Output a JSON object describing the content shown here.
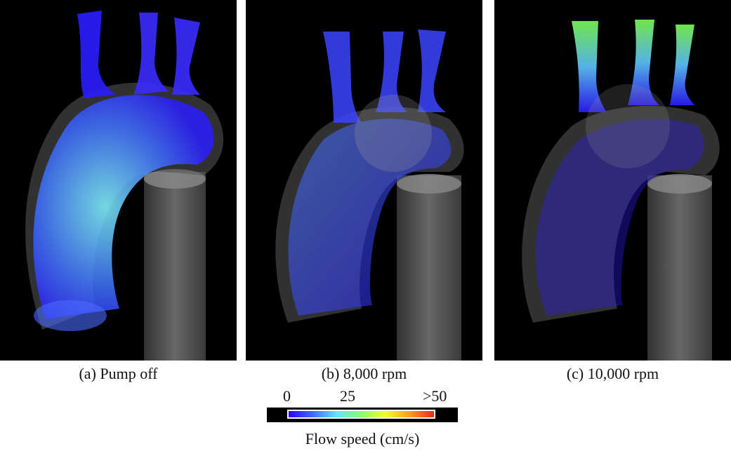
{
  "panels": [
    {
      "id": "a",
      "caption": "(a) Pump off"
    },
    {
      "id": "b",
      "caption": "(b) 8,000 rpm"
    },
    {
      "id": "c",
      "caption": "(c) 10,000 rpm"
    }
  ],
  "legend": {
    "title": "Flow speed (cm/s)",
    "tick_min": "0",
    "tick_mid": "25",
    "tick_max": ">50",
    "colormap": [
      "#2a00ff",
      "#3f6cff",
      "#5fe6ff",
      "#8bff66",
      "#f0ff2b",
      "#ff9a1e",
      "#e8281c"
    ]
  },
  "colors": {
    "background": "#000000",
    "vessel": "#6f6f6f",
    "low_flow": "#2a1dff",
    "mid_flow": "#5fe6ff",
    "high_flow": "#7dff55"
  }
}
